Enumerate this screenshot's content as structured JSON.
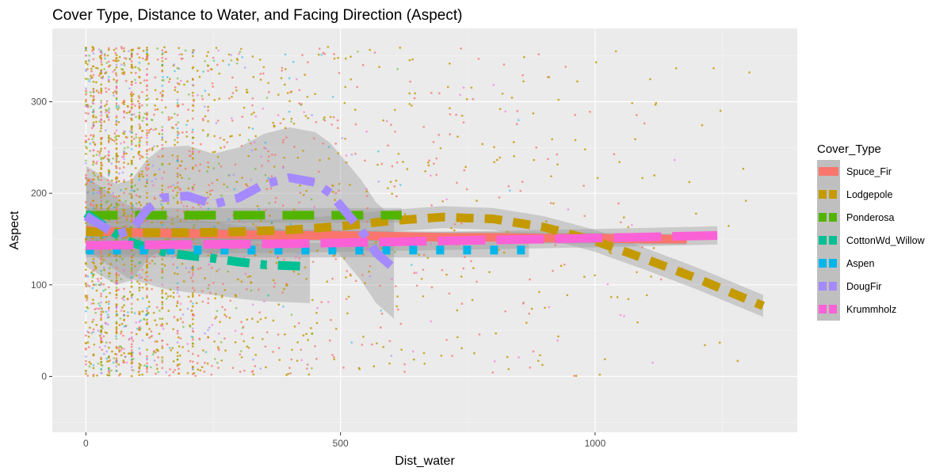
{
  "chart_data": {
    "type": "scatter",
    "title": "Cover Type, Distance to Water, and Facing Direction (Aspect)",
    "xlabel": "Dist_water",
    "ylabel": "Aspect",
    "xlim": [
      -66,
      1397
    ],
    "ylim": [
      -61,
      380
    ],
    "x_ticks": [
      0,
      500,
      1000
    ],
    "y_ticks": [
      0,
      100,
      200,
      300
    ],
    "grid": true,
    "legend": {
      "title": "Cover_Type",
      "position": "right"
    },
    "series": [
      {
        "name": "Spuce_Fir",
        "color": "#F8766D",
        "density": 900,
        "x_max": 1180,
        "weight": 0.75,
        "smooth": {
          "x": [
            0,
            100,
            200,
            300,
            400,
            500,
            600,
            700,
            800,
            900,
            1000,
            1100,
            1180
          ],
          "y": [
            159,
            157,
            156,
            155,
            154,
            154,
            153,
            152,
            152,
            151,
            151,
            150,
            150
          ],
          "band": 6
        }
      },
      {
        "name": "Lodgepole",
        "color": "#C49A00",
        "density": 1100,
        "x_max": 1330,
        "weight": 0.8,
        "smooth": {
          "x": [
            0,
            100,
            200,
            300,
            400,
            500,
            600,
            700,
            800,
            900,
            1000,
            1100,
            1200,
            1330
          ],
          "y": [
            158,
            157,
            157,
            158,
            160,
            164,
            170,
            174,
            172,
            163,
            148,
            128,
            107,
            77
          ],
          "band": 12
        }
      },
      {
        "name": "Ponderosa",
        "color": "#53B400",
        "density": 260,
        "x_max": 620,
        "weight": 0.5,
        "smooth": {
          "x": [
            0,
            100,
            200,
            300,
            400,
            500,
            620
          ],
          "y": [
            176,
            176,
            176,
            176,
            176,
            176,
            176
          ],
          "band": 8
        }
      },
      {
        "name": "CottonWd_Willow",
        "color": "#00C094",
        "density": 30,
        "x_max": 440,
        "weight": 0.5,
        "smooth": {
          "x": [
            0,
            40,
            80,
            120,
            160,
            200,
            250,
            300,
            350,
            440
          ],
          "y": [
            178,
            163,
            148,
            141,
            135,
            132,
            129,
            125,
            122,
            120
          ],
          "band": 40
        }
      },
      {
        "name": "Aspen",
        "color": "#00B6EB",
        "density": 120,
        "x_max": 870,
        "weight": 0.5,
        "smooth": {
          "x": [
            0,
            200,
            400,
            600,
            870
          ],
          "y": [
            138,
            138,
            138,
            138,
            138
          ],
          "band": 8
        }
      },
      {
        "name": "DougFir",
        "color": "#A58AFF",
        "density": 140,
        "x_max": 605,
        "weight": 0.6,
        "smooth": {
          "x": [
            0,
            30,
            60,
            90,
            120,
            150,
            200,
            250,
            300,
            350,
            400,
            450,
            480,
            510,
            540,
            570,
            605
          ],
          "y": [
            175,
            165,
            155,
            160,
            182,
            195,
            197,
            188,
            195,
            210,
            217,
            212,
            200,
            180,
            160,
            135,
            118
          ],
          "band": 55
        }
      },
      {
        "name": "Krummholz",
        "color": "#FB61D7",
        "density": 160,
        "x_max": 1240,
        "weight": 0.55,
        "smooth": {
          "x": [
            0,
            200,
            400,
            600,
            800,
            1000,
            1240
          ],
          "y": [
            143,
            144,
            145,
            147,
            149,
            151,
            154
          ],
          "band": 10
        }
      }
    ]
  }
}
